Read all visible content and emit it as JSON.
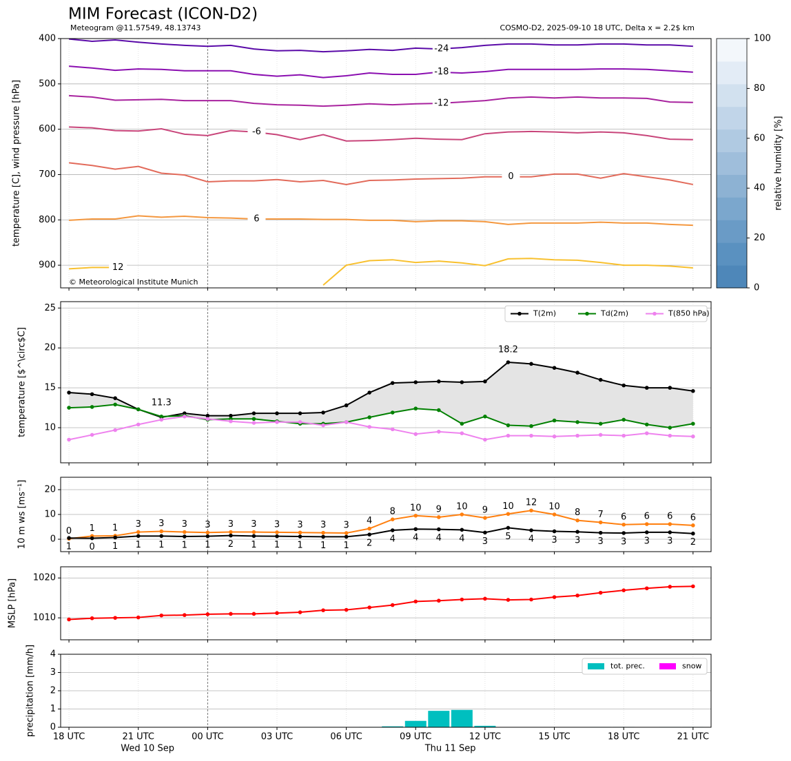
{
  "time_axis": {
    "x": [
      0,
      1,
      2,
      3,
      4,
      5,
      6,
      7,
      8,
      9,
      10,
      11,
      12,
      13,
      14,
      15,
      16,
      17,
      18,
      19,
      20,
      21,
      22,
      23,
      24,
      25,
      26,
      27
    ],
    "xlim": [
      -0.36,
      27.78
    ],
    "xticks": [
      {
        "value": 0,
        "label": "18 UTC"
      },
      {
        "value": 3,
        "label": "21 UTC"
      },
      {
        "value": 6,
        "label": "00 UTC"
      },
      {
        "value": 9,
        "label": "03 UTC"
      },
      {
        "value": 12,
        "label": "06 UTC"
      },
      {
        "value": 15,
        "label": "09 UTC"
      },
      {
        "value": 18,
        "label": "12 UTC"
      },
      {
        "value": 21,
        "label": "15 UTC"
      },
      {
        "value": 24,
        "label": "18 UTC"
      },
      {
        "value": 27,
        "label": "21 UTC"
      }
    ],
    "day_labels": [
      {
        "value": 3.4,
        "label": "Wed 10 Sep"
      },
      {
        "value": 16.5,
        "label": "Thu 11 Sep"
      }
    ]
  },
  "chart_data": [
    {
      "type": "contour",
      "title": "MIM Forecast (ICON-D2)",
      "subtitle": "Meteogram @11.57549, 48.13743",
      "subtitle_right": "COSMO-D2, 2025-09-10 18 UTC, Delta x = 2.2$ km",
      "ylabel": "temperature [C], wind pressure [hPa]",
      "source": "© Meteorological Institute Munich",
      "ylim": [
        950,
        400
      ],
      "yticks": [
        400,
        500,
        600,
        700,
        800,
        900
      ],
      "grid": true,
      "series": [
        {
          "name": "-24",
          "color": "#5a0aa8",
          "values": [
            401,
            406,
            403,
            408,
            412,
            415,
            417,
            415,
            423,
            427,
            426,
            429,
            427,
            424,
            426,
            421,
            423,
            420,
            415,
            412,
            412,
            414,
            414,
            412,
            412,
            414,
            414,
            417
          ]
        },
        {
          "name": "-18",
          "color": "#8a0eb0",
          "values": [
            461,
            465,
            470,
            467,
            468,
            471,
            471,
            471,
            479,
            483,
            480,
            486,
            482,
            476,
            479,
            479,
            474,
            476,
            473,
            468,
            468,
            468,
            468,
            467,
            467,
            468,
            471,
            474
          ]
        },
        {
          "name": "-12",
          "color": "#a8229e",
          "values": [
            526,
            529,
            536,
            535,
            534,
            537,
            537,
            537,
            543,
            546,
            547,
            549,
            547,
            544,
            546,
            544,
            543,
            540,
            537,
            531,
            529,
            531,
            529,
            531,
            531,
            532,
            540,
            541
          ]
        },
        {
          "name": "-6",
          "color": "#c8457a",
          "values": [
            595,
            597,
            603,
            604,
            599,
            611,
            614,
            603,
            606,
            612,
            623,
            612,
            626,
            625,
            623,
            620,
            622,
            623,
            610,
            606,
            605,
            606,
            608,
            606,
            608,
            614,
            622,
            623
          ]
        },
        {
          "name": "0",
          "color": "#e26a5a",
          "values": [
            674,
            680,
            688,
            682,
            697,
            701,
            716,
            714,
            714,
            711,
            716,
            713,
            722,
            713,
            712,
            710,
            709,
            708,
            705,
            705,
            705,
            699,
            699,
            708,
            698,
            705,
            712,
            722
          ]
        },
        {
          "name": "6",
          "color": "#f4973e",
          "values": [
            801,
            798,
            798,
            791,
            794,
            792,
            795,
            796,
            798,
            798,
            798,
            799,
            799,
            801,
            801,
            804,
            802,
            802,
            804,
            810,
            807,
            807,
            807,
            805,
            807,
            807,
            810,
            812
          ]
        },
        {
          "name": "12",
          "color": "#f8c02e",
          "values": [
            908,
            905,
            905,
            null,
            null,
            null,
            null,
            null,
            null,
            null,
            null,
            944,
            900,
            890,
            888,
            894,
            891,
            895,
            901,
            886,
            885,
            888,
            889,
            894,
            900,
            900,
            902,
            906
          ]
        }
      ],
      "colorbar": {
        "label": "relative humidity [%]",
        "lim": [
          0,
          100
        ],
        "ticks": [
          0,
          20,
          40,
          60,
          80,
          100
        ],
        "colors": [
          "#4e87b9",
          "#5a91c0",
          "#6a9bc6",
          "#7ba7cd",
          "#8db2d3",
          "#9fbedb",
          "#b0cae2",
          "#c1d5e9",
          "#d2e1ef",
          "#e3ecf6",
          "#f3f7fb"
        ]
      }
    },
    {
      "type": "line",
      "ylabel": "temperature [$^\\circ$C]",
      "ylim": [
        5.6,
        25.8
      ],
      "yticks": [
        10,
        15,
        20,
        25
      ],
      "grid": true,
      "legend": "upper right",
      "fill_color": "#e4e4e4",
      "series": [
        {
          "name": "T(2m)",
          "color": "#000000",
          "values": [
            14.4,
            14.2,
            13.7,
            12.3,
            11.3,
            11.8,
            11.5,
            11.5,
            11.8,
            11.8,
            11.8,
            11.9,
            12.8,
            14.4,
            15.6,
            15.7,
            15.8,
            15.7,
            15.8,
            18.2,
            18.0,
            17.5,
            16.9,
            16.0,
            15.3,
            15.0,
            15.0,
            14.6
          ]
        },
        {
          "name": "Td(2m)",
          "color": "#008000",
          "values": [
            12.5,
            12.6,
            12.9,
            12.3,
            11.4,
            11.5,
            11.0,
            11.1,
            11.1,
            10.8,
            10.5,
            10.5,
            10.7,
            11.3,
            11.9,
            12.4,
            12.2,
            10.5,
            11.4,
            10.3,
            10.2,
            10.9,
            10.7,
            10.5,
            11.0,
            10.4,
            10.0,
            10.5
          ]
        },
        {
          "name": "T(850 hPa)",
          "color": "#ee82ee",
          "values": [
            8.5,
            9.1,
            9.7,
            10.4,
            11.0,
            11.4,
            11.1,
            10.8,
            10.6,
            10.7,
            10.7,
            10.3,
            10.7,
            10.1,
            9.8,
            9.2,
            9.5,
            9.3,
            8.5,
            9.0,
            9.0,
            8.9,
            9.0,
            9.1,
            9.0,
            9.3,
            9.0,
            8.9
          ]
        }
      ],
      "annotations": [
        {
          "text": "18.2",
          "color": "#ff0000"
        },
        {
          "text": "11.3",
          "color": "#0000cc"
        }
      ]
    },
    {
      "type": "line",
      "ylabel": "10 m ws [ms⁻¹]",
      "ylim": [
        -5,
        25
      ],
      "yticks": [
        0,
        10,
        20
      ],
      "grid": true,
      "series": [
        {
          "color": "#ff7f0e",
          "values": [
            0.2,
            1.3,
            1.4,
            2.9,
            3.2,
            2.9,
            2.7,
            2.9,
            2.9,
            2.8,
            2.7,
            2.6,
            2.5,
            4.3,
            8.0,
            9.5,
            8.9,
            10.0,
            8.6,
            10.2,
            11.6,
            10.0,
            7.6,
            6.8,
            5.9,
            6.1,
            6.1,
            5.6
          ],
          "value_labels": [
            "0",
            "1",
            "1",
            "3",
            "3",
            "3",
            "3",
            "3",
            "3",
            "3",
            "3",
            "3",
            "3",
            "4",
            "8",
            "10",
            "9",
            "10",
            "9",
            "10",
            "12",
            "10",
            "8",
            "7",
            "6",
            "6",
            "6",
            "6"
          ]
        },
        {
          "color": "#000000",
          "values": [
            0.5,
            0.4,
            0.7,
            1.3,
            1.3,
            1.1,
            1.2,
            1.5,
            1.3,
            1.2,
            1.1,
            1.0,
            1.0,
            1.9,
            3.6,
            4.1,
            4.0,
            3.8,
            2.7,
            4.6,
            3.6,
            3.2,
            3.0,
            2.6,
            2.5,
            2.8,
            2.8,
            2.3
          ],
          "value_labels": [
            "1",
            "0",
            "1",
            "1",
            "1",
            "1",
            "1",
            "2",
            "1",
            "1",
            "1",
            "1",
            "1",
            "2",
            "4",
            "4",
            "4",
            "4",
            "3",
            "5",
            "4",
            "3",
            "3",
            "3",
            "3",
            "3",
            "3",
            "2"
          ]
        }
      ]
    },
    {
      "type": "line",
      "ylabel": "MSLP [hPa]",
      "ylim": [
        1004.5,
        1022.8
      ],
      "yticks": [
        1010,
        1020
      ],
      "grid": true,
      "series": [
        {
          "color": "#ff0000",
          "values": [
            1009.6,
            1009.9,
            1010.0,
            1010.1,
            1010.6,
            1010.7,
            1010.9,
            1011.0,
            1011.0,
            1011.2,
            1011.4,
            1011.9,
            1012.0,
            1012.6,
            1013.2,
            1014.1,
            1014.3,
            1014.6,
            1014.8,
            1014.5,
            1014.6,
            1015.2,
            1015.6,
            1016.3,
            1016.9,
            1017.4,
            1017.8,
            1017.9
          ]
        }
      ]
    },
    {
      "type": "bar",
      "ylabel": "precipitation [mm/h]",
      "ylim": [
        0,
        4
      ],
      "yticks": [
        0,
        1,
        2,
        3,
        4
      ],
      "grid": true,
      "legend": "upper right",
      "series": [
        {
          "name": "tot. prec.",
          "color": "#00bfbf",
          "values": [
            0,
            0,
            0,
            0,
            0,
            0,
            0,
            0,
            0,
            0,
            0,
            0,
            0,
            0.02,
            0.05,
            0.35,
            0.9,
            0.95,
            0.08,
            0,
            0,
            0,
            0,
            0.02,
            0.02,
            0,
            0.02,
            0.02
          ]
        },
        {
          "name": "snow",
          "color": "#ff00ff",
          "values": [
            0,
            0,
            0,
            0,
            0,
            0,
            0,
            0,
            0,
            0,
            0,
            0,
            0,
            0,
            0,
            0,
            0,
            0,
            0,
            0,
            0,
            0,
            0,
            0,
            0,
            0,
            0,
            0
          ]
        }
      ]
    }
  ]
}
